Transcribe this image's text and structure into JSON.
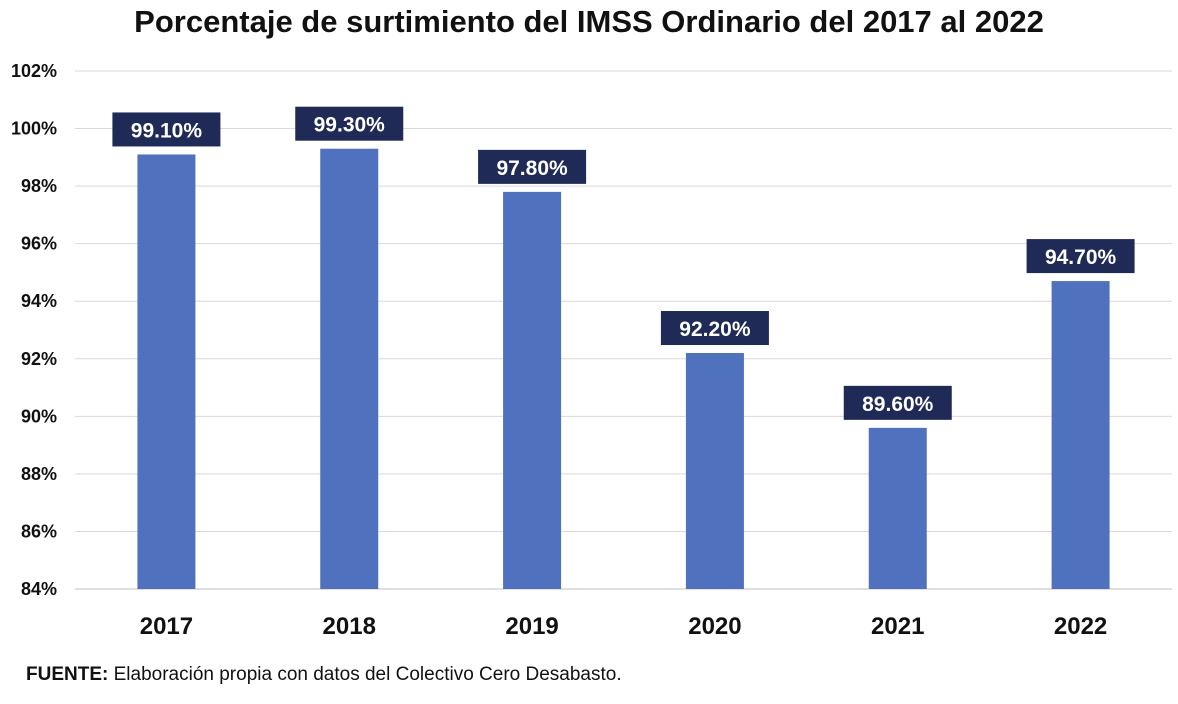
{
  "chart_data": {
    "type": "bar",
    "title": "Porcentaje de surtimiento del IMSS Ordinario del 2017 al 2022",
    "categories": [
      "2017",
      "2018",
      "2019",
      "2020",
      "2021",
      "2022"
    ],
    "values": [
      99.1,
      99.3,
      97.8,
      92.2,
      89.6,
      94.7
    ],
    "data_labels": [
      "99.10%",
      "99.30%",
      "97.80%",
      "92.20%",
      "89.60%",
      "94.70%"
    ],
    "yticks": [
      "84%",
      "86%",
      "88%",
      "90%",
      "92%",
      "94%",
      "96%",
      "98%",
      "100%",
      "102%"
    ],
    "ylim": [
      84,
      102
    ],
    "grid": true,
    "bar_color": "#4f71be",
    "label_box_color": "#1f2a56"
  },
  "footer": {
    "label": "FUENTE:",
    "text": " Elaboración propia con datos del Colectivo Cero Desabasto."
  }
}
